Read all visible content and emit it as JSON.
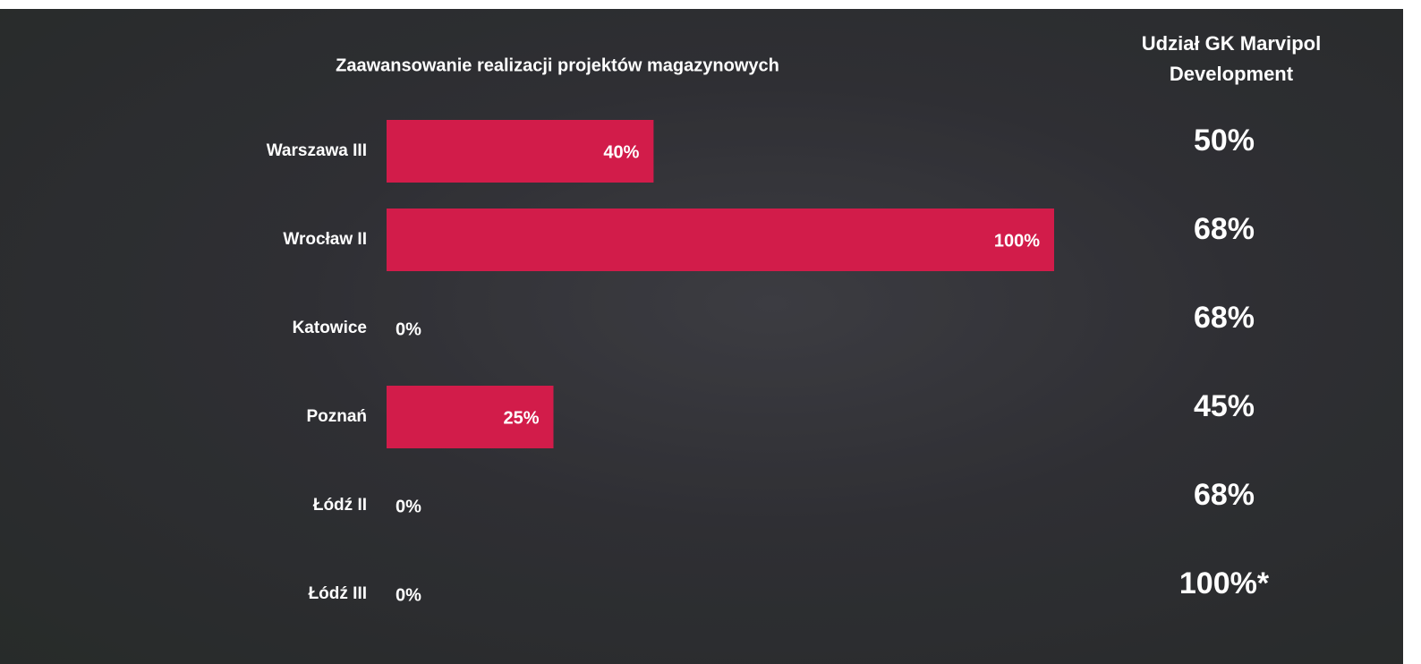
{
  "chart_data": {
    "type": "hbar",
    "title": "Zaawansowanie realizacji projektów magazynowych",
    "categories": [
      "Warszawa III",
      "Wrocław II",
      "Katowice",
      "Poznań",
      "Łódź II",
      "Łódź III"
    ],
    "values": [
      40,
      100,
      0,
      25,
      0,
      0
    ],
    "value_labels": [
      "40%",
      "100%",
      "0%",
      "25%",
      "0%",
      "0%"
    ],
    "color": "#d21c4a",
    "xlim": [
      0,
      100
    ],
    "share_title": "Udział GK Marvipol Development",
    "share_values": [
      50,
      68,
      68,
      45,
      68,
      100
    ],
    "share_labels": [
      "50%",
      "68%",
      "68%",
      "45%",
      "68%",
      "100%*"
    ]
  }
}
